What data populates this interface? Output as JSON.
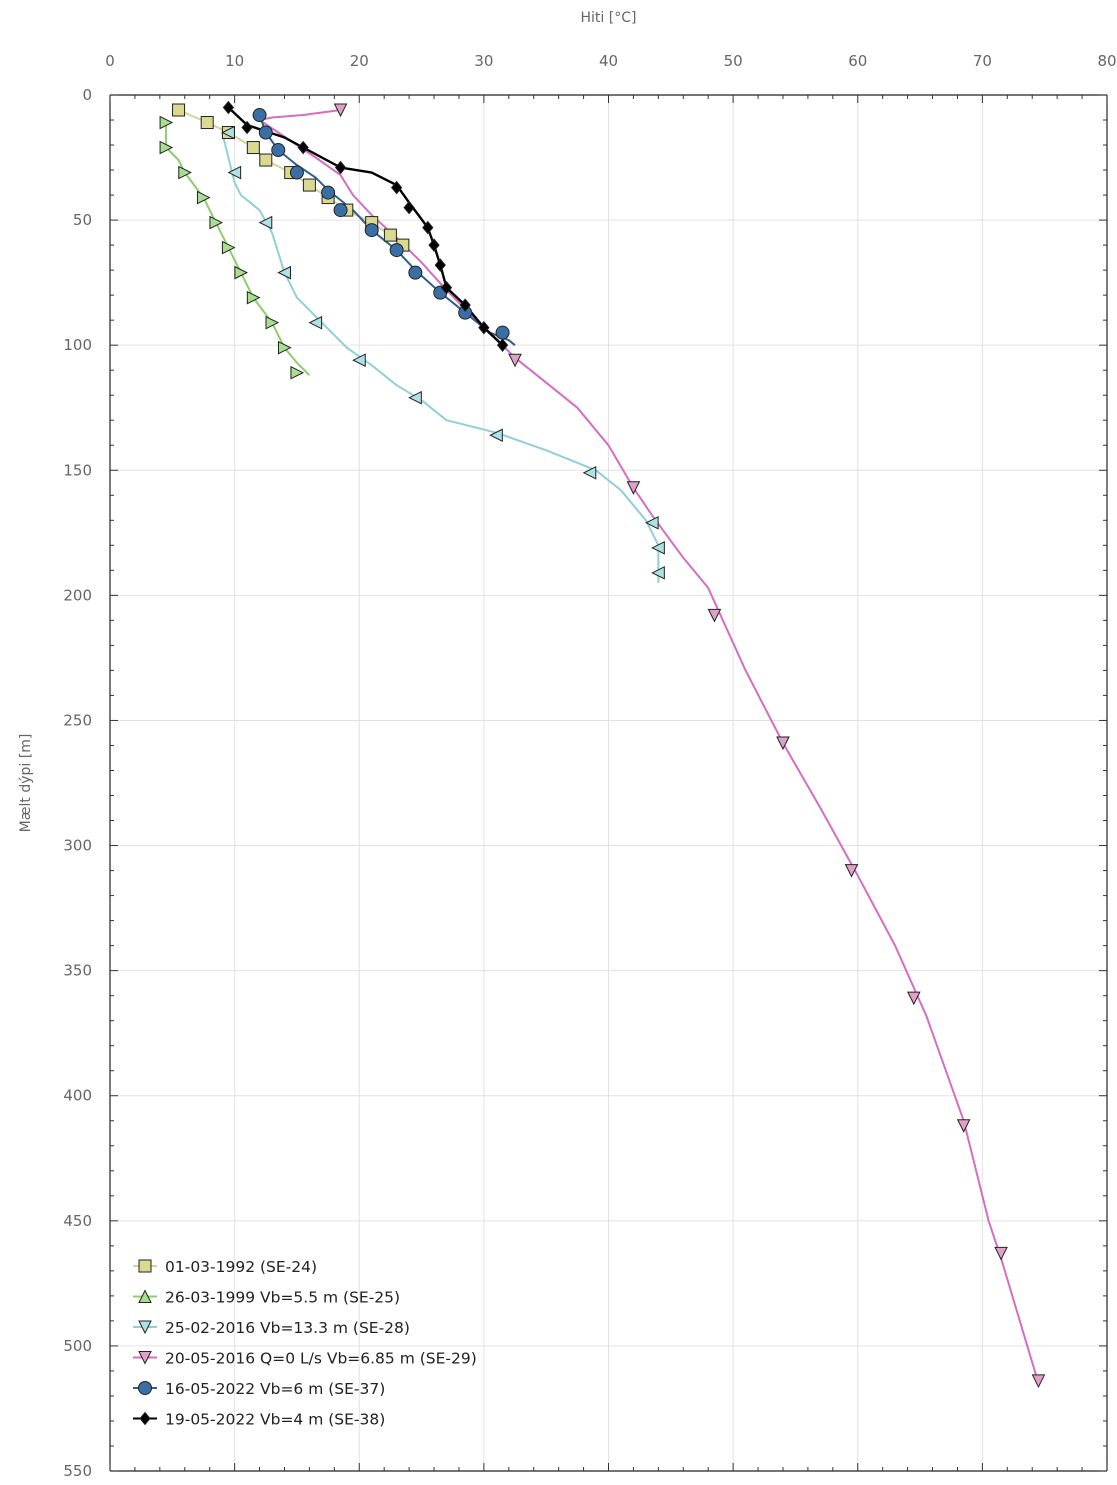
{
  "chart_data": {
    "type": "line",
    "xlabel": "Hiti [°C]",
    "ylabel": "Mælt dýpi [m]",
    "x_axis_position": "top",
    "y_inverted": true,
    "xlim": [
      0,
      80
    ],
    "ylim": [
      0,
      550
    ],
    "xticks": [
      0,
      10,
      20,
      30,
      40,
      50,
      60,
      70,
      80
    ],
    "yticks": [
      0,
      50,
      100,
      150,
      200,
      250,
      300,
      350,
      400,
      450,
      500,
      550
    ],
    "grid": true,
    "legend_position": "bottom-left",
    "series": [
      {
        "name": "01-03-1992 (SE-24)",
        "color": "#d6d996",
        "line_color": "#cfd59a",
        "marker": "square",
        "marker_fill": "#d9d98f",
        "line": [
          [
            5.5,
            6
          ],
          [
            7.8,
            11
          ],
          [
            9.5,
            15
          ],
          [
            11.5,
            21
          ],
          [
            12.5,
            26
          ],
          [
            14.5,
            31
          ],
          [
            16,
            36
          ],
          [
            17.5,
            41
          ],
          [
            19,
            46
          ],
          [
            21,
            51
          ],
          [
            22.5,
            56
          ],
          [
            24,
            61
          ]
        ],
        "markers": [
          [
            5.5,
            6
          ],
          [
            7.8,
            11
          ],
          [
            9.5,
            15
          ],
          [
            11.5,
            21
          ],
          [
            12.5,
            26
          ],
          [
            14.5,
            31
          ],
          [
            16,
            36
          ],
          [
            17.5,
            41
          ],
          [
            19,
            46
          ],
          [
            21,
            51
          ],
          [
            22.5,
            56
          ],
          [
            23.5,
            60
          ]
        ]
      },
      {
        "name": "26-03-1999 Vb=5.5 m (SE-25)",
        "color": "#a9dd8f",
        "line_color": "#8ccf6a",
        "marker": "triangle-right",
        "marker_fill": "#a9dd8f",
        "line": [
          [
            4.5,
            11
          ],
          [
            4.5,
            21
          ],
          [
            5.5,
            26
          ],
          [
            6,
            31
          ],
          [
            7.5,
            41
          ],
          [
            8.5,
            51
          ],
          [
            9.5,
            61
          ],
          [
            10.5,
            71
          ],
          [
            11.5,
            81
          ],
          [
            13,
            91
          ],
          [
            14,
            101
          ],
          [
            15,
            107
          ],
          [
            16,
            112
          ]
        ],
        "markers": [
          [
            4.5,
            11
          ],
          [
            4.5,
            21
          ],
          [
            6,
            31
          ],
          [
            7.5,
            41
          ],
          [
            8.5,
            51
          ],
          [
            9.5,
            61
          ],
          [
            10.5,
            71
          ],
          [
            11.5,
            81
          ],
          [
            13,
            91
          ],
          [
            14,
            101
          ],
          [
            15,
            111
          ]
        ]
      },
      {
        "name": "25-02-2016 Vb=13.3 m (SE-28)",
        "color": "#aee0e6",
        "line_color": "#8fd0d8",
        "marker": "triangle-left",
        "marker_fill": "#aee0e6",
        "line": [
          [
            9,
            15
          ],
          [
            9.5,
            25
          ],
          [
            10,
            35
          ],
          [
            10.5,
            40
          ],
          [
            12,
            46
          ],
          [
            13,
            55
          ],
          [
            14,
            71
          ],
          [
            15,
            81
          ],
          [
            17,
            91
          ],
          [
            19,
            101
          ],
          [
            21,
            108
          ],
          [
            23,
            116
          ],
          [
            25,
            122
          ],
          [
            27,
            130
          ],
          [
            31,
            135
          ],
          [
            35,
            142
          ],
          [
            39,
            150
          ],
          [
            41,
            158
          ],
          [
            43,
            170
          ],
          [
            44,
            180
          ],
          [
            44,
            190
          ],
          [
            44,
            195
          ]
        ],
        "markers": [
          [
            9.5,
            15
          ],
          [
            10,
            31
          ],
          [
            12.5,
            51
          ],
          [
            14,
            71
          ],
          [
            16.5,
            91
          ],
          [
            20,
            106
          ],
          [
            24.5,
            121
          ],
          [
            31,
            136
          ],
          [
            38.5,
            151
          ],
          [
            43.5,
            171
          ],
          [
            44,
            181
          ],
          [
            44,
            191
          ]
        ]
      },
      {
        "name": "20-05-2016 Q=0 L/s Vb=6.85 m (SE-29)",
        "color": "#e08fd0",
        "line_color": "#d56dc2",
        "marker": "triangle-down",
        "marker_fill": "#e0a0c8",
        "line": [
          [
            18.5,
            6
          ],
          [
            15.5,
            8
          ],
          [
            13,
            9
          ],
          [
            12,
            10
          ],
          [
            13.5,
            15
          ],
          [
            15,
            20
          ],
          [
            16.5,
            25
          ],
          [
            18.5,
            32
          ],
          [
            19.5,
            40
          ],
          [
            21,
            48
          ],
          [
            23,
            57
          ],
          [
            25,
            67
          ],
          [
            27,
            78
          ],
          [
            29,
            88
          ],
          [
            30.5,
            95
          ],
          [
            32.5,
            105
          ],
          [
            35,
            115
          ],
          [
            37.5,
            125
          ],
          [
            40,
            140
          ],
          [
            42,
            157
          ],
          [
            43.5,
            168
          ],
          [
            46,
            185
          ],
          [
            48,
            197
          ],
          [
            51,
            230
          ],
          [
            54,
            259
          ],
          [
            57,
            285
          ],
          [
            60,
            312
          ],
          [
            63,
            340
          ],
          [
            65.5,
            368
          ],
          [
            68.5,
            410
          ],
          [
            70.5,
            450
          ],
          [
            71.5,
            465
          ],
          [
            74.5,
            515
          ]
        ],
        "markers": [
          [
            18.5,
            6
          ],
          [
            32.5,
            106
          ],
          [
            42,
            157
          ],
          [
            48.5,
            208
          ],
          [
            54,
            259
          ],
          [
            59.5,
            310
          ],
          [
            64.5,
            361
          ],
          [
            68.5,
            412
          ],
          [
            71.5,
            463
          ],
          [
            74.5,
            514
          ]
        ]
      },
      {
        "name": "16-05-2022 Vb=6 m (SE-37)",
        "color": "#3a6fa6",
        "line_color": "#2f5d8f",
        "marker": "circle",
        "marker_fill": "#3a6fa6",
        "line": [
          [
            12,
            8
          ],
          [
            12.5,
            15
          ],
          [
            13.5,
            22
          ],
          [
            15,
            28
          ],
          [
            16.5,
            33
          ],
          [
            17.5,
            38
          ],
          [
            18.5,
            42
          ],
          [
            19.5,
            46
          ],
          [
            21,
            54
          ],
          [
            23,
            62
          ],
          [
            24.5,
            70
          ],
          [
            26.5,
            79
          ],
          [
            28.5,
            87
          ],
          [
            30.5,
            95
          ],
          [
            32,
            98
          ],
          [
            32.5,
            100
          ]
        ],
        "markers": [
          [
            12,
            8
          ],
          [
            12.5,
            15
          ],
          [
            13.5,
            22
          ],
          [
            15,
            31
          ],
          [
            17.5,
            39
          ],
          [
            18.5,
            46
          ],
          [
            21,
            54
          ],
          [
            23,
            62
          ],
          [
            24.5,
            71
          ],
          [
            26.5,
            79
          ],
          [
            28.5,
            87
          ],
          [
            31.5,
            95
          ]
        ]
      },
      {
        "name": "19-05-2022 Vb=4 m (SE-38)",
        "color": "#000000",
        "line_color": "#000000",
        "marker": "diamond",
        "marker_fill": "#000000",
        "line": [
          [
            9.5,
            5
          ],
          [
            11,
            12
          ],
          [
            14,
            17
          ],
          [
            15.5,
            21
          ],
          [
            18.5,
            29
          ],
          [
            21,
            31
          ],
          [
            23,
            36
          ],
          [
            24,
            43
          ],
          [
            25.5,
            53
          ],
          [
            26,
            60
          ],
          [
            26.5,
            68
          ],
          [
            27,
            77
          ],
          [
            28.5,
            84
          ],
          [
            30,
            93
          ],
          [
            31.5,
            100
          ]
        ],
        "markers": [
          [
            9.5,
            5
          ],
          [
            11,
            13
          ],
          [
            15.5,
            21
          ],
          [
            18.5,
            29
          ],
          [
            23,
            37
          ],
          [
            24,
            45
          ],
          [
            25.5,
            53
          ],
          [
            26,
            60
          ],
          [
            26.5,
            68
          ],
          [
            27,
            77
          ],
          [
            28.5,
            84
          ],
          [
            30,
            93
          ],
          [
            31.5,
            100
          ]
        ]
      }
    ]
  }
}
